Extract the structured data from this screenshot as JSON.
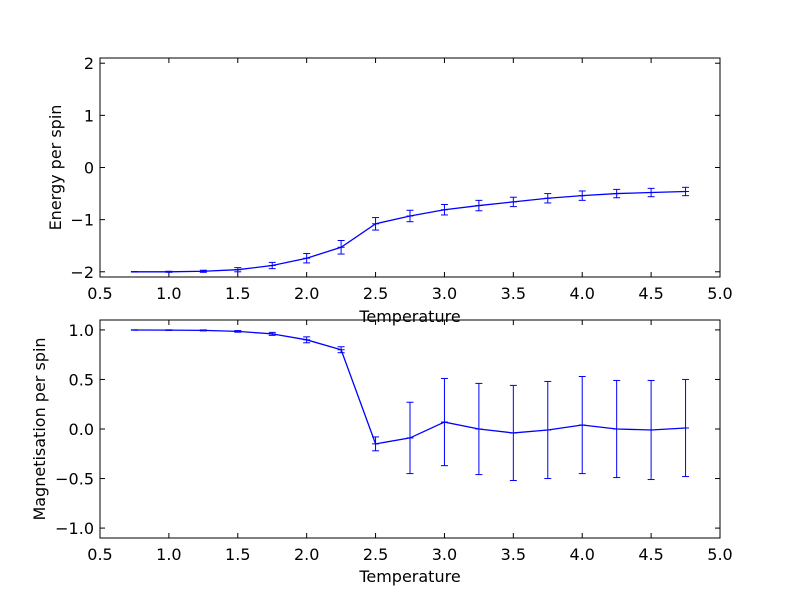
{
  "chart_data": [
    {
      "type": "line",
      "title": "",
      "xlabel": "Temperature",
      "ylabel": "Energy per spin",
      "xlim": [
        0.5,
        5.0
      ],
      "ylim": [
        -2.1,
        2.1
      ],
      "xticks": [
        "0.5",
        "1.0",
        "1.5",
        "2.0",
        "2.5",
        "3.0",
        "3.5",
        "4.0",
        "4.5",
        "5.0"
      ],
      "yticks": [
        "−2",
        "−1",
        "0",
        "1",
        "2"
      ],
      "ytick_values": [
        -2,
        -1,
        0,
        1,
        2
      ],
      "grid": false,
      "color": "#0000ff",
      "x": [
        0.75,
        1.0,
        1.25,
        1.5,
        1.75,
        2.0,
        2.25,
        2.5,
        2.75,
        3.0,
        3.25,
        3.5,
        3.75,
        4.0,
        4.25,
        4.5,
        4.75
      ],
      "y": [
        -2.0,
        -2.0,
        -1.99,
        -1.96,
        -1.88,
        -1.74,
        -1.53,
        -1.08,
        -0.93,
        -0.81,
        -0.73,
        -0.66,
        -0.59,
        -0.54,
        -0.5,
        -0.48,
        -0.46
      ],
      "yerr": [
        0.005,
        0.01,
        0.02,
        0.04,
        0.06,
        0.09,
        0.13,
        0.12,
        0.11,
        0.1,
        0.1,
        0.09,
        0.09,
        0.09,
        0.08,
        0.08,
        0.08
      ]
    },
    {
      "type": "line",
      "title": "",
      "xlabel": "Temperature",
      "ylabel": "Magnetisation per spin",
      "xlim": [
        0.5,
        5.0
      ],
      "ylim": [
        -1.1,
        1.1
      ],
      "xticks": [
        "0.5",
        "1.0",
        "1.5",
        "2.0",
        "2.5",
        "3.0",
        "3.5",
        "4.0",
        "4.5",
        "5.0"
      ],
      "yticks": [
        "−1.0",
        "−0.5",
        "0.0",
        "0.5",
        "1.0"
      ],
      "ytick_values": [
        -1.0,
        -0.5,
        0.0,
        0.5,
        1.0
      ],
      "grid": false,
      "color": "#0000ff",
      "x": [
        0.75,
        1.0,
        1.25,
        1.5,
        1.75,
        2.0,
        2.25,
        2.5,
        2.75,
        3.0,
        3.25,
        3.5,
        3.75,
        4.0,
        4.25,
        4.5,
        4.75
      ],
      "y": [
        0.999,
        0.998,
        0.995,
        0.985,
        0.96,
        0.9,
        0.8,
        -0.15,
        -0.09,
        0.07,
        0.0,
        -0.04,
        -0.01,
        0.04,
        0.0,
        -0.01,
        0.01
      ],
      "yerr": [
        0.002,
        0.003,
        0.005,
        0.008,
        0.015,
        0.03,
        0.03,
        0.07,
        0.36,
        0.44,
        0.46,
        0.48,
        0.49,
        0.49,
        0.49,
        0.5,
        0.49
      ]
    }
  ]
}
